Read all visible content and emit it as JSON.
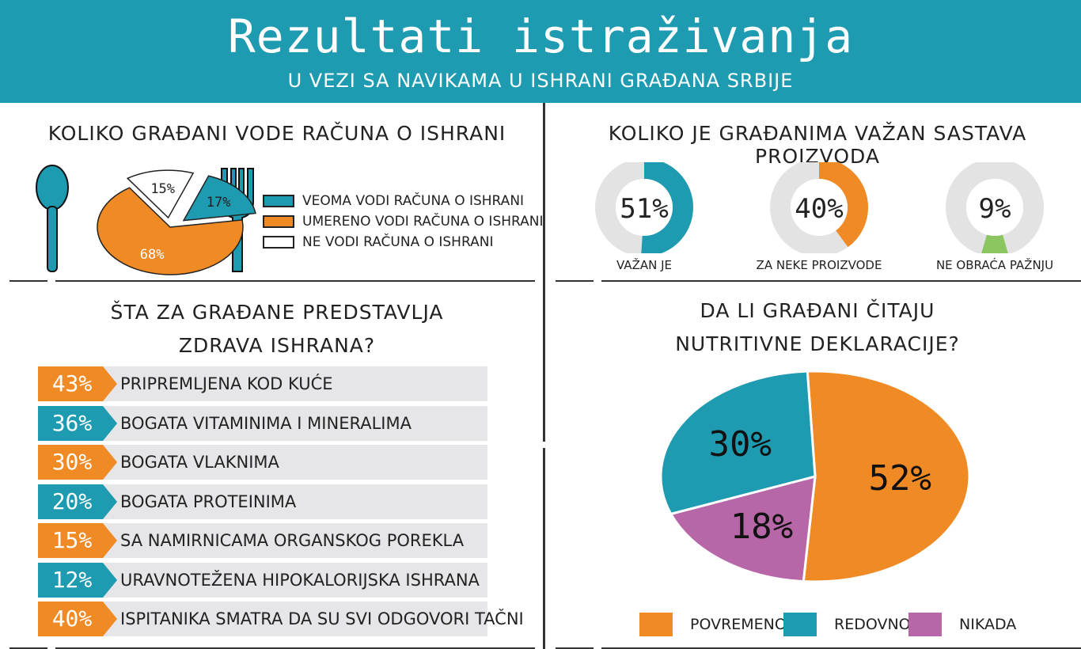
{
  "header": {
    "title": "Rezultati istraživanja",
    "subtitle": "U VEZI SA NAVIKAMA U ISHRANI GRAĐANA SRBIJE"
  },
  "colors": {
    "teal": "#1e9bb0",
    "orange": "#f08a24",
    "white": "#ffffff",
    "purple": "#b766a8",
    "green": "#8cc661",
    "gray": "#e3e3e3"
  },
  "icons": [
    "spoon-icon",
    "fork-icon"
  ],
  "section1": {
    "title": "KOLIKO GRAĐANI VODE RAČUNA O ISHRANI",
    "legend": [
      "VEOMA VODI RAČUNA O ISHRANI",
      "UMERENO VODI RAČUNA O ISHRANI",
      "NE VODI RAČUNA O ISHRANI"
    ]
  },
  "section2": {
    "title": "KOLIKO JE GRAĐANIMA VAŽAN SASTAVA PROIZVODA"
  },
  "section3": {
    "title_line1": "ŠTA ZA GRAĐANE PREDSTAVLJA",
    "title_line2": "ZDRAVA ISHRANA?"
  },
  "section4": {
    "title_line1": "DA LI GRAĐANI ČITAJU",
    "title_line2": "NUTRITIVNE DEKLARACIJE?"
  },
  "chart_data": [
    {
      "type": "pie",
      "title": "KOLIKO GRAĐANI VODE RAČUNA O ISHRANI",
      "categories": [
        "VEOMA VODI RAČUNA O ISHRANI",
        "UMERENO VODI RAČUNA O ISHRANI",
        "NE VODI RAČUNA O ISHRANI"
      ],
      "values": [
        17,
        68,
        15
      ],
      "labels": [
        "17%",
        "68%",
        "15%"
      ],
      "colors": [
        "#1e9bb0",
        "#f08a24",
        "#ffffff"
      ],
      "legend": "right"
    },
    {
      "type": "pie",
      "title": "KOLIKO JE GRAĐANIMA VAŽAN SASTAVA PROIZVODA",
      "categories": [
        "VAŽAN JE",
        "ZA NEKE PROIZVODE",
        "NE OBRAĆA PAŽNJU"
      ],
      "values": [
        51,
        40,
        9
      ],
      "labels": [
        "51%",
        "40%",
        "9%"
      ],
      "colors": [
        "#1e9bb0",
        "#f08a24",
        "#8cc661"
      ]
    },
    {
      "type": "bar",
      "title": "ŠTA ZA GRAĐANE PREDSTAVLJA ZDRAVA ISHRANA?",
      "categories": [
        "PRIPREMLJENA KOD KUĆE",
        "BOGATA VITAMINIMA I MINERALIMA",
        "BOGATA VLAKNIMA",
        "BOGATA PROTEINIMA",
        "SA NAMIRNICAMA ORGANSKOG POREKLA",
        "URAVNOTEŽENA HIPOKALORIJSKA ISHRANA",
        "ISPITANIKA SMATRA DA SU SVI ODGOVORI TAČNI"
      ],
      "values": [
        43,
        36,
        30,
        20,
        15,
        12,
        40
      ],
      "labels": [
        "43%",
        "36%",
        "30%",
        "20%",
        "15%",
        "12%",
        "40%"
      ],
      "colors": [
        "#f08a24",
        "#1e9bb0",
        "#f08a24",
        "#1e9bb0",
        "#f08a24",
        "#1e9bb0",
        "#f08a24"
      ]
    },
    {
      "type": "pie",
      "title": "DA LI GRAĐANI ČITAJU NUTRITIVNE DEKLARACIJE?",
      "categories": [
        "POVREMENO",
        "REDOVNO",
        "NIKADA"
      ],
      "values": [
        52,
        30,
        18
      ],
      "labels": [
        "52%",
        "30%",
        "18%"
      ],
      "colors": [
        "#f08a24",
        "#1e9bb0",
        "#b766a8"
      ],
      "legend": "bottom"
    }
  ]
}
